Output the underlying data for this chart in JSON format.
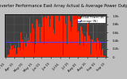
{
  "title": "Solar PV/Inverter Performance East Array Actual & Average Power Output",
  "title_fontsize": 3.8,
  "background_color": "#c0c0c0",
  "plot_bg_color": "#404040",
  "bar_color": "#ff2200",
  "avg_line_color": "#4444ff",
  "avg_line_value": 0.37,
  "ylim": [
    0,
    1.05
  ],
  "xlabel_fontsize": 2.8,
  "ylabel_fontsize": 2.8,
  "legend_fontsize": 2.5,
  "num_bars": 130,
  "grid_color": "#888888",
  "ylabel_labels": [
    "0",
    "0.2k",
    "0.4k",
    "0.6k",
    "0.8k",
    "1.0k"
  ],
  "ylabel_ticks": [
    0,
    0.2,
    0.4,
    0.6,
    0.8,
    1.0
  ],
  "xtick_labels": [
    "Apr 01",
    "Apr 15",
    "May 01",
    "May 15",
    "Jun 01",
    "Jun 15",
    "Jul 01",
    "Jul 15",
    "Aug 01",
    "Aug 15",
    "Sep 01",
    "Sep 15"
  ],
  "legend_actual": "Actual Power (W)",
  "legend_avg": "Average (W)"
}
